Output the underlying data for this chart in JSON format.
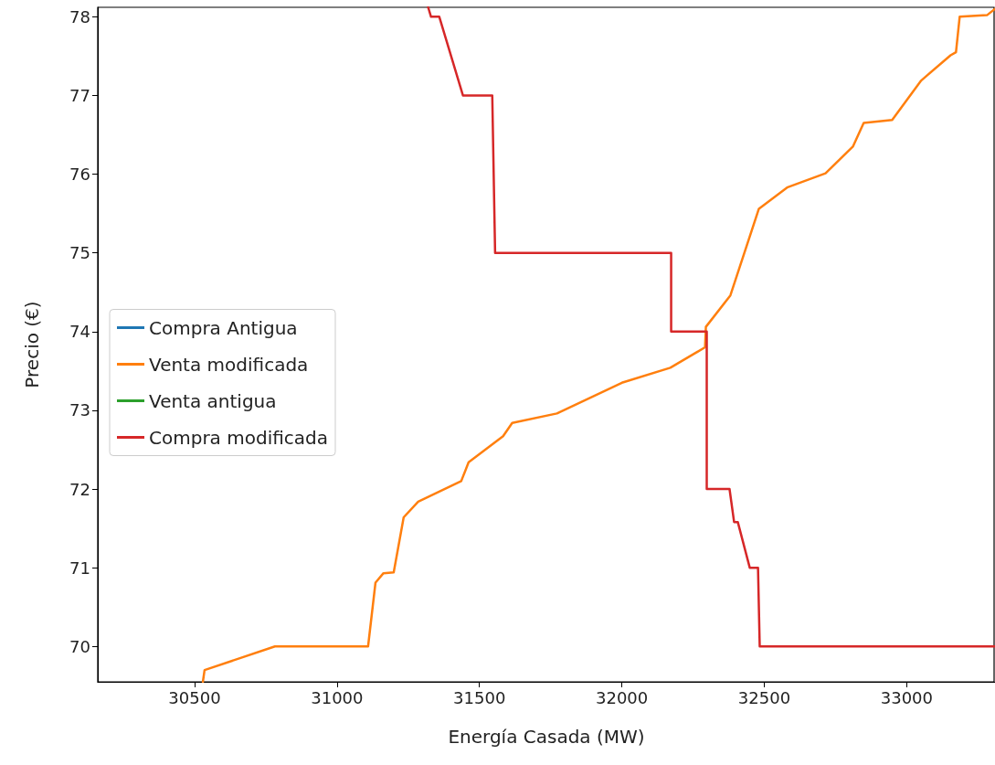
{
  "chart_data": {
    "type": "line",
    "xlabel": "Energía Casada (MW)",
    "ylabel": "Precio (€)",
    "xlim": [
      30160,
      33310
    ],
    "ylim": [
      69.55,
      78.12
    ],
    "xticks": [
      30500,
      31000,
      31500,
      32000,
      32500,
      33000
    ],
    "yticks": [
      70,
      71,
      72,
      73,
      74,
      75,
      76,
      77,
      78
    ],
    "grid": false,
    "legend": "left",
    "marker": "none",
    "line_style": "solid",
    "series": [
      {
        "name": "Compra Antigua",
        "color": "#1f77b4"
      },
      {
        "name": "Venta modificada",
        "color": "#ff7f0e",
        "x": [
          30529,
          30535,
          30782,
          31109,
          31135,
          31163,
          31199,
          31234,
          31285,
          31436,
          31462,
          31583,
          31615,
          31772,
          32000,
          32170,
          32292,
          32295,
          32381,
          32481,
          32580,
          32715,
          32811,
          32849,
          32949,
          33051,
          33154,
          33173,
          33186,
          33282,
          33310
        ],
        "values": [
          69.55,
          69.7,
          70.0,
          70.0,
          70.81,
          70.93,
          70.94,
          71.64,
          71.84,
          72.1,
          72.34,
          72.67,
          72.84,
          72.96,
          73.35,
          73.54,
          73.8,
          74.06,
          74.46,
          75.56,
          75.83,
          76.01,
          76.35,
          76.65,
          76.69,
          77.19,
          77.51,
          77.55,
          78.0,
          78.02,
          78.1
        ]
      },
      {
        "name": "Venta antigua",
        "color": "#2ca02c"
      },
      {
        "name": "Compra modificada",
        "color": "#d62728",
        "x": [
          31320,
          31330,
          31359,
          31442,
          31545,
          31555,
          32173,
          32173,
          32298,
          32298,
          32378,
          32394,
          32407,
          32449,
          32478,
          32484,
          33310
        ],
        "values": [
          78.12,
          78.0,
          78.0,
          77.0,
          77.0,
          75.0,
          75.0,
          74.0,
          74.0,
          72.0,
          72.0,
          71.58,
          71.58,
          71.0,
          71.0,
          70.0,
          70.0
        ]
      }
    ]
  }
}
